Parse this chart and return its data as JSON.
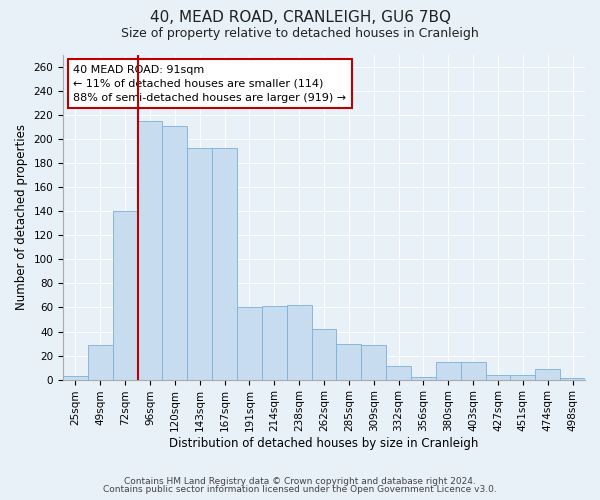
{
  "title": "40, MEAD ROAD, CRANLEIGH, GU6 7BQ",
  "subtitle": "Size of property relative to detached houses in Cranleigh",
  "xlabel": "Distribution of detached houses by size in Cranleigh",
  "ylabel": "Number of detached properties",
  "bar_labels": [
    "25sqm",
    "49sqm",
    "72sqm",
    "96sqm",
    "120sqm",
    "143sqm",
    "167sqm",
    "191sqm",
    "214sqm",
    "238sqm",
    "262sqm",
    "285sqm",
    "309sqm",
    "332sqm",
    "356sqm",
    "380sqm",
    "403sqm",
    "427sqm",
    "451sqm",
    "474sqm",
    "498sqm"
  ],
  "bar_values": [
    3,
    29,
    140,
    215,
    211,
    193,
    193,
    60,
    61,
    62,
    42,
    30,
    29,
    11,
    2,
    15,
    15,
    4,
    4,
    9,
    1
  ],
  "bar_color": "#c8dcf0",
  "bar_edge_color": "#7ab0d8",
  "ylim": [
    0,
    270
  ],
  "yticks": [
    0,
    20,
    40,
    60,
    80,
    100,
    120,
    140,
    160,
    180,
    200,
    220,
    240,
    260
  ],
  "vline_color": "#bb0000",
  "annotation_text": "40 MEAD ROAD: 91sqm\n← 11% of detached houses are smaller (114)\n88% of semi-detached houses are larger (919) →",
  "annotation_box_facecolor": "#ffffff",
  "annotation_box_edgecolor": "#bb0000",
  "footnote1": "Contains HM Land Registry data © Crown copyright and database right 2024.",
  "footnote2": "Contains public sector information licensed under the Open Government Licence v3.0.",
  "bg_color": "#e8f0f8",
  "plot_bg_color": "#e8f0f8",
  "grid_color": "#ffffff",
  "title_fontsize": 11,
  "subtitle_fontsize": 9,
  "label_fontsize": 8.5,
  "tick_fontsize": 7.5,
  "footnote_fontsize": 6.5
}
